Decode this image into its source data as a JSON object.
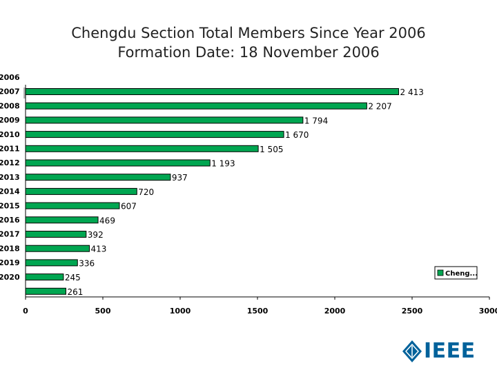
{
  "chart_data": {
    "type": "bar",
    "orientation": "horizontal",
    "title": "Chengdu Section Total Members Since Year 2006",
    "subtitle": "Formation Date: 18 November 2006",
    "categories": [
      "2006",
      "2007",
      "2008",
      "2009",
      "2010",
      "2011",
      "2012",
      "2013",
      "2014",
      "2015",
      "2016",
      "2017",
      "2018",
      "2019",
      "2020"
    ],
    "series": [
      {
        "name": "Cheng...",
        "values": [
          2413,
          2207,
          1794,
          1670,
          1505,
          1193,
          937,
          720,
          607,
          469,
          392,
          413,
          336,
          245,
          261
        ],
        "value_labels": [
          "2 413",
          "2 207",
          "1 794",
          "1 670",
          "1 505",
          "1 193",
          "937",
          "720",
          "607",
          "469",
          "392",
          "413",
          "336",
          "245",
          "261"
        ]
      }
    ],
    "xlim": [
      0,
      3000
    ],
    "xticks": [
      "0",
      "500",
      "1000",
      "1500",
      "2000",
      "2500",
      "3000"
    ],
    "grid": false,
    "legend_position": "bottom-right"
  },
  "logo": {
    "text": "IEEE"
  },
  "colors": {
    "bar": "#00a651",
    "logo": "#00629b"
  }
}
